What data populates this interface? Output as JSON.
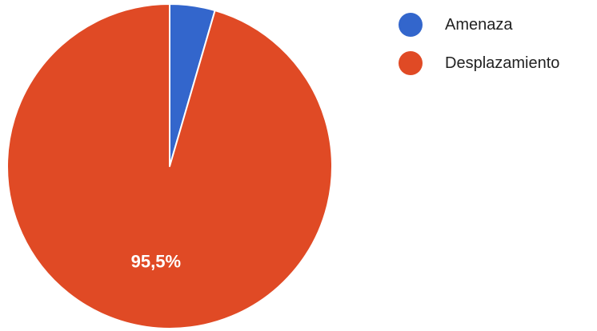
{
  "chart_data": {
    "type": "pie",
    "title": "",
    "categories": [
      "Amenaza",
      "Desplazamiento"
    ],
    "values": [
      4.5,
      95.5
    ],
    "colors": [
      "#3366CC",
      "#E04A25"
    ],
    "slice_labels": [
      "",
      "95,5%"
    ],
    "start_angle": "top",
    "direction": "clockwise",
    "legend_position": "right",
    "legend": [
      {
        "label": "Amenaza",
        "color": "#3366CC"
      },
      {
        "label": "Desplazamiento",
        "color": "#E04A25"
      }
    ]
  }
}
